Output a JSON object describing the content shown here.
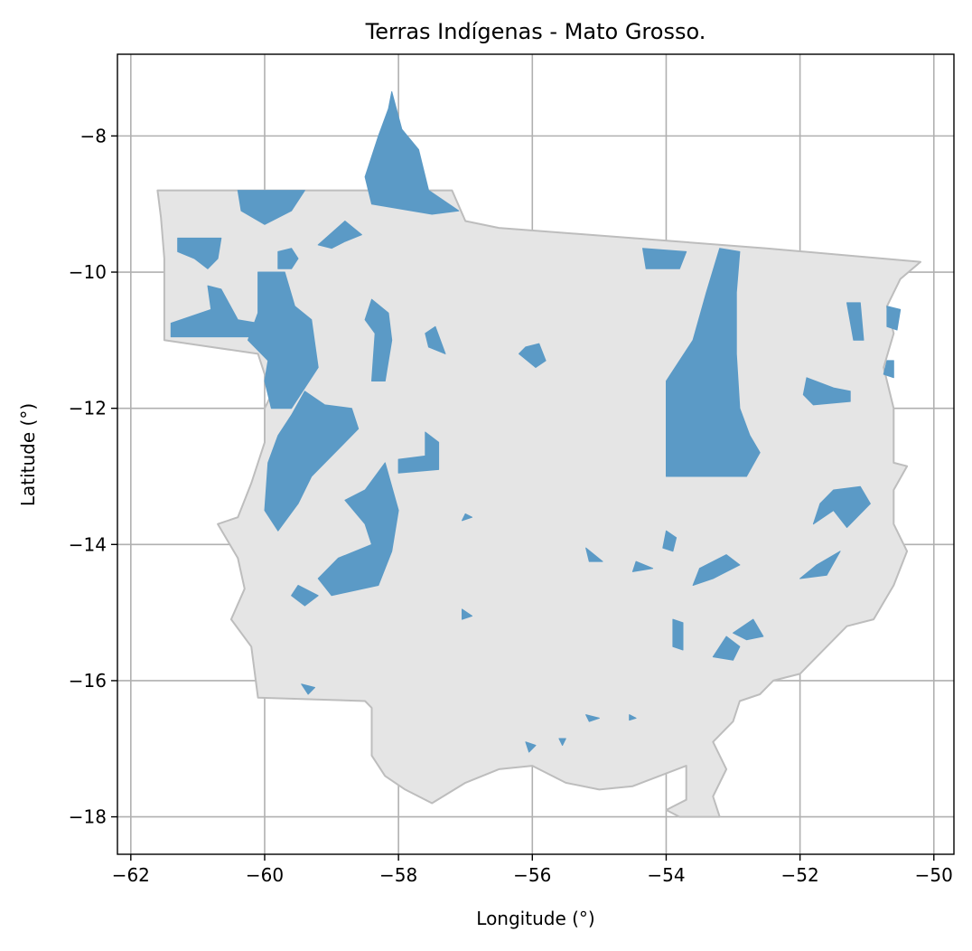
{
  "chart_data": {
    "type": "map",
    "title": "Terras Indígenas - Mato Grosso.",
    "xlabel": "Longitude (°)",
    "ylabel": "Latitude (°)",
    "xlim": [
      -62.2,
      -49.7
    ],
    "ylim": [
      -18.55,
      -6.8
    ],
    "x_ticks": [
      -62,
      -60,
      -58,
      -56,
      -54,
      -52,
      -50
    ],
    "y_ticks": [
      -8,
      -10,
      -12,
      -14,
      -16,
      -18
    ],
    "x_tick_labels": [
      "−62",
      "−60",
      "−58",
      "−56",
      "−54",
      "−52",
      "−50"
    ],
    "y_tick_labels": [
      "−8",
      "−10",
      "−12",
      "−14",
      "−16",
      "−18"
    ],
    "grid": true,
    "colors": {
      "state_fill": "#e5e5e5",
      "state_edge": "#bdbdbd",
      "territory_fill": "#5b9ac6",
      "grid": "#b0b0b0"
    },
    "state_boundary": [
      [
        -61.6,
        -8.8
      ],
      [
        -57.2,
        -8.8
      ],
      [
        -57.0,
        -9.25
      ],
      [
        -56.5,
        -9.35
      ],
      [
        -52.5,
        -9.65
      ],
      [
        -50.2,
        -9.85
      ],
      [
        -50.5,
        -10.1
      ],
      [
        -50.7,
        -10.5
      ],
      [
        -50.6,
        -10.9
      ],
      [
        -50.75,
        -11.4
      ],
      [
        -50.6,
        -12.0
      ],
      [
        -50.6,
        -12.8
      ],
      [
        -50.4,
        -12.85
      ],
      [
        -50.6,
        -13.2
      ],
      [
        -50.6,
        -13.7
      ],
      [
        -50.4,
        -14.1
      ],
      [
        -50.6,
        -14.6
      ],
      [
        -50.9,
        -15.1
      ],
      [
        -51.3,
        -15.2
      ],
      [
        -51.7,
        -15.6
      ],
      [
        -52.0,
        -15.9
      ],
      [
        -52.4,
        -16.0
      ],
      [
        -52.6,
        -16.2
      ],
      [
        -52.9,
        -16.3
      ],
      [
        -53.0,
        -16.6
      ],
      [
        -53.3,
        -16.9
      ],
      [
        -53.1,
        -17.3
      ],
      [
        -53.3,
        -17.7
      ],
      [
        -53.2,
        -18.0
      ],
      [
        -53.8,
        -18.0
      ],
      [
        -54.0,
        -17.9
      ],
      [
        -53.7,
        -17.75
      ],
      [
        -53.7,
        -17.25
      ],
      [
        -54.5,
        -17.55
      ],
      [
        -55.0,
        -17.6
      ],
      [
        -55.5,
        -17.5
      ],
      [
        -56.0,
        -17.25
      ],
      [
        -56.5,
        -17.3
      ],
      [
        -57.0,
        -17.5
      ],
      [
        -57.5,
        -17.8
      ],
      [
        -57.9,
        -17.6
      ],
      [
        -58.2,
        -17.4
      ],
      [
        -58.4,
        -17.1
      ],
      [
        -58.4,
        -16.4
      ],
      [
        -58.5,
        -16.3
      ],
      [
        -60.1,
        -16.25
      ],
      [
        -60.2,
        -15.5
      ],
      [
        -60.5,
        -15.1
      ],
      [
        -60.3,
        -14.65
      ],
      [
        -60.4,
        -14.2
      ],
      [
        -60.7,
        -13.7
      ],
      [
        -60.4,
        -13.6
      ],
      [
        -60.2,
        -13.1
      ],
      [
        -60.0,
        -12.5
      ],
      [
        -60.0,
        -12.0
      ],
      [
        -59.9,
        -11.8
      ],
      [
        -60.1,
        -11.2
      ],
      [
        -61.5,
        -11.0
      ],
      [
        -61.5,
        -10.5
      ],
      [
        -61.5,
        -9.8
      ],
      [
        -61.55,
        -9.2
      ],
      [
        -61.6,
        -8.8
      ]
    ],
    "territories": [
      [
        [
          -58.1,
          -7.35
        ],
        [
          -57.95,
          -7.9
        ],
        [
          -57.7,
          -8.2
        ],
        [
          -57.55,
          -8.8
        ],
        [
          -57.1,
          -9.1
        ],
        [
          -57.5,
          -9.15
        ],
        [
          -58.4,
          -9.0
        ],
        [
          -58.5,
          -8.6
        ],
        [
          -58.3,
          -8.0
        ],
        [
          -58.15,
          -7.6
        ]
      ],
      [
        [
          -60.4,
          -8.8
        ],
        [
          -59.4,
          -8.8
        ],
        [
          -59.6,
          -9.1
        ],
        [
          -60.0,
          -9.3
        ],
        [
          -60.35,
          -9.1
        ]
      ],
      [
        [
          -58.8,
          -9.25
        ],
        [
          -59.2,
          -9.6
        ],
        [
          -59.0,
          -9.65
        ],
        [
          -58.8,
          -9.55
        ],
        [
          -58.55,
          -9.45
        ]
      ],
      [
        [
          -61.3,
          -9.5
        ],
        [
          -60.65,
          -9.5
        ],
        [
          -60.7,
          -9.8
        ],
        [
          -60.85,
          -9.95
        ],
        [
          -61.05,
          -9.8
        ],
        [
          -61.3,
          -9.7
        ]
      ],
      [
        [
          -59.8,
          -9.7
        ],
        [
          -59.6,
          -9.65
        ],
        [
          -59.5,
          -9.8
        ],
        [
          -59.6,
          -9.95
        ],
        [
          -59.8,
          -9.95
        ]
      ],
      [
        [
          -61.4,
          -10.75
        ],
        [
          -60.8,
          -10.55
        ],
        [
          -60.85,
          -10.2
        ],
        [
          -60.65,
          -10.25
        ],
        [
          -60.4,
          -10.7
        ],
        [
          -60.1,
          -10.75
        ],
        [
          -60.05,
          -10.95
        ],
        [
          -61.4,
          -10.95
        ]
      ],
      [
        [
          -60.1,
          -10.0
        ],
        [
          -59.7,
          -10.0
        ],
        [
          -59.55,
          -10.5
        ],
        [
          -59.3,
          -10.7
        ],
        [
          -59.2,
          -11.4
        ],
        [
          -59.4,
          -11.7
        ],
        [
          -59.6,
          -12.0
        ],
        [
          -59.9,
          -12.0
        ],
        [
          -60.0,
          -11.6
        ],
        [
          -59.95,
          -11.3
        ],
        [
          -60.25,
          -11.0
        ],
        [
          -60.1,
          -10.6
        ]
      ],
      [
        [
          -58.4,
          -10.4
        ],
        [
          -58.15,
          -10.6
        ],
        [
          -58.1,
          -11.0
        ],
        [
          -58.2,
          -11.6
        ],
        [
          -58.4,
          -11.6
        ],
        [
          -58.35,
          -10.9
        ],
        [
          -58.5,
          -10.7
        ]
      ],
      [
        [
          -57.45,
          -10.8
        ],
        [
          -57.3,
          -11.2
        ],
        [
          -57.55,
          -11.1
        ],
        [
          -57.6,
          -10.9
        ]
      ],
      [
        [
          -56.1,
          -11.1
        ],
        [
          -55.9,
          -11.05
        ],
        [
          -55.8,
          -11.3
        ],
        [
          -55.95,
          -11.4
        ],
        [
          -56.2,
          -11.2
        ]
      ],
      [
        [
          -59.4,
          -11.75
        ],
        [
          -59.6,
          -12.1
        ],
        [
          -59.8,
          -12.4
        ],
        [
          -59.95,
          -12.8
        ],
        [
          -60.0,
          -13.5
        ],
        [
          -59.8,
          -13.8
        ],
        [
          -59.5,
          -13.4
        ],
        [
          -59.3,
          -13.0
        ],
        [
          -58.9,
          -12.6
        ],
        [
          -58.6,
          -12.3
        ],
        [
          -58.7,
          -12.0
        ],
        [
          -59.1,
          -11.95
        ]
      ],
      [
        [
          -57.6,
          -12.35
        ],
        [
          -57.4,
          -12.5
        ],
        [
          -57.4,
          -12.9
        ],
        [
          -58.0,
          -12.95
        ],
        [
          -58.0,
          -12.75
        ],
        [
          -57.6,
          -12.7
        ]
      ],
      [
        [
          -58.2,
          -12.8
        ],
        [
          -58.5,
          -13.2
        ],
        [
          -58.8,
          -13.35
        ],
        [
          -58.5,
          -13.7
        ],
        [
          -58.4,
          -14.0
        ],
        [
          -58.9,
          -14.2
        ],
        [
          -59.2,
          -14.5
        ],
        [
          -59.0,
          -14.75
        ],
        [
          -58.3,
          -14.6
        ],
        [
          -58.1,
          -14.1
        ],
        [
          -58.0,
          -13.5
        ]
      ],
      [
        [
          -54.0,
          -11.6
        ],
        [
          -53.6,
          -11.0
        ],
        [
          -53.4,
          -10.3
        ],
        [
          -53.2,
          -9.65
        ],
        [
          -52.9,
          -9.7
        ],
        [
          -52.95,
          -10.3
        ],
        [
          -52.95,
          -11.2
        ],
        [
          -52.9,
          -12.0
        ],
        [
          -52.75,
          -12.4
        ],
        [
          -52.6,
          -12.65
        ],
        [
          -52.8,
          -13.0
        ],
        [
          -54.0,
          -13.0
        ]
      ],
      [
        [
          -54.35,
          -9.65
        ],
        [
          -53.7,
          -9.7
        ],
        [
          -53.8,
          -9.95
        ],
        [
          -54.3,
          -9.95
        ]
      ],
      [
        [
          -51.3,
          -10.45
        ],
        [
          -51.1,
          -10.45
        ],
        [
          -51.05,
          -11.0
        ],
        [
          -51.2,
          -11.0
        ]
      ],
      [
        [
          -50.7,
          -10.5
        ],
        [
          -50.5,
          -10.55
        ],
        [
          -50.55,
          -10.85
        ],
        [
          -50.7,
          -10.8
        ]
      ],
      [
        [
          -50.7,
          -11.3
        ],
        [
          -50.6,
          -11.3
        ],
        [
          -50.6,
          -11.55
        ],
        [
          -50.75,
          -11.5
        ]
      ],
      [
        [
          -51.9,
          -11.55
        ],
        [
          -51.5,
          -11.7
        ],
        [
          -51.25,
          -11.75
        ],
        [
          -51.25,
          -11.9
        ],
        [
          -51.8,
          -11.95
        ],
        [
          -51.95,
          -11.8
        ]
      ],
      [
        [
          -51.5,
          -13.2
        ],
        [
          -51.1,
          -13.15
        ],
        [
          -50.95,
          -13.4
        ],
        [
          -51.3,
          -13.75
        ],
        [
          -51.5,
          -13.5
        ],
        [
          -51.8,
          -13.7
        ],
        [
          -51.7,
          -13.4
        ]
      ],
      [
        [
          -53.1,
          -14.15
        ],
        [
          -52.9,
          -14.3
        ],
        [
          -53.3,
          -14.5
        ],
        [
          -53.6,
          -14.6
        ],
        [
          -53.5,
          -14.35
        ]
      ],
      [
        [
          -51.4,
          -14.1
        ],
        [
          -51.6,
          -14.45
        ],
        [
          -52.0,
          -14.5
        ],
        [
          -51.75,
          -14.3
        ]
      ],
      [
        [
          -52.7,
          -15.1
        ],
        [
          -52.55,
          -15.35
        ],
        [
          -52.8,
          -15.4
        ],
        [
          -53.0,
          -15.3
        ]
      ],
      [
        [
          -53.1,
          -15.35
        ],
        [
          -53.3,
          -15.65
        ],
        [
          -53.0,
          -15.7
        ],
        [
          -52.9,
          -15.5
        ]
      ],
      [
        [
          -53.9,
          -15.1
        ],
        [
          -53.75,
          -15.15
        ],
        [
          -53.75,
          -15.55
        ],
        [
          -53.9,
          -15.5
        ]
      ],
      [
        [
          -54.0,
          -13.8
        ],
        [
          -53.85,
          -13.9
        ],
        [
          -53.9,
          -14.1
        ],
        [
          -54.05,
          -14.05
        ]
      ],
      [
        [
          -54.45,
          -14.25
        ],
        [
          -54.2,
          -14.35
        ],
        [
          -54.5,
          -14.4
        ]
      ],
      [
        [
          -55.2,
          -14.05
        ],
        [
          -54.95,
          -14.25
        ],
        [
          -55.15,
          -14.25
        ]
      ],
      [
        [
          -59.5,
          -14.6
        ],
        [
          -59.2,
          -14.75
        ],
        [
          -59.4,
          -14.9
        ],
        [
          -59.6,
          -14.75
        ]
      ],
      [
        [
          -59.45,
          -16.05
        ],
        [
          -59.35,
          -16.2
        ],
        [
          -59.25,
          -16.1
        ]
      ],
      [
        [
          -57.0,
          -13.55
        ],
        [
          -57.05,
          -13.65
        ],
        [
          -56.9,
          -13.6
        ]
      ],
      [
        [
          -57.05,
          -14.95
        ],
        [
          -56.9,
          -15.05
        ],
        [
          -57.05,
          -15.1
        ]
      ],
      [
        [
          -55.2,
          -16.5
        ],
        [
          -55.0,
          -16.55
        ],
        [
          -55.15,
          -16.6
        ]
      ],
      [
        [
          -54.55,
          -16.5
        ],
        [
          -54.45,
          -16.55
        ],
        [
          -54.55,
          -16.58
        ]
      ],
      [
        [
          -56.1,
          -16.9
        ],
        [
          -55.95,
          -16.95
        ],
        [
          -56.05,
          -17.05
        ]
      ],
      [
        [
          -55.6,
          -16.85
        ],
        [
          -55.5,
          -16.85
        ],
        [
          -55.55,
          -16.95
        ]
      ]
    ]
  }
}
